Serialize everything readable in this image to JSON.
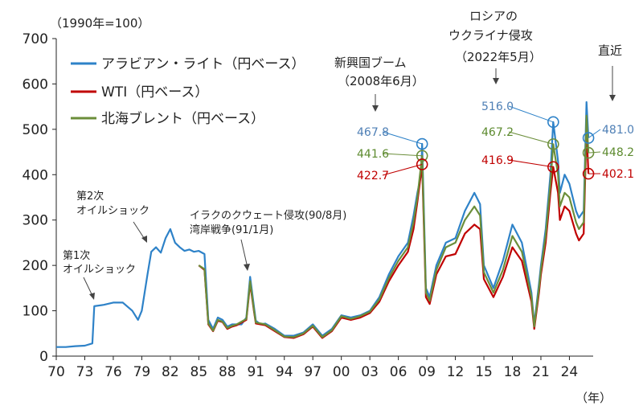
{
  "chart_data": {
    "type": "line",
    "unit_label": "（1990年=100）",
    "x_unit_label": "（年）",
    "ylim": [
      0,
      700
    ],
    "yticks": [
      0,
      100,
      200,
      300,
      400,
      500,
      600,
      700
    ],
    "xlim": [
      1970,
      2026.5
    ],
    "xticks": [
      {
        "year": 1970,
        "label": "70"
      },
      {
        "year": 1973,
        "label": "73"
      },
      {
        "year": 1976,
        "label": "76"
      },
      {
        "year": 1979,
        "label": "79"
      },
      {
        "year": 1982,
        "label": "82"
      },
      {
        "year": 1985,
        "label": "85"
      },
      {
        "year": 1988,
        "label": "88"
      },
      {
        "year": 1991,
        "label": "91"
      },
      {
        "year": 1994,
        "label": "94"
      },
      {
        "year": 1997,
        "label": "97"
      },
      {
        "year": 2000,
        "label": "00"
      },
      {
        "year": 2003,
        "label": "03"
      },
      {
        "year": 2006,
        "label": "06"
      },
      {
        "year": 2009,
        "label": "09"
      },
      {
        "year": 2012,
        "label": "12"
      },
      {
        "year": 2015,
        "label": "15"
      },
      {
        "year": 2018,
        "label": "18"
      },
      {
        "year": 2021,
        "label": "21"
      },
      {
        "year": 2024,
        "label": "24"
      }
    ],
    "grid": false,
    "legend_position": "top-left",
    "series": [
      {
        "name": "アラビアン・ライト（円ベース）",
        "color": "#2e82c8",
        "points": [
          [
            1970,
            20
          ],
          [
            1971,
            20
          ],
          [
            1972,
            22
          ],
          [
            1973,
            23
          ],
          [
            1973.8,
            28
          ],
          [
            1974,
            110
          ],
          [
            1975,
            113
          ],
          [
            1976,
            118
          ],
          [
            1977,
            118
          ],
          [
            1978,
            100
          ],
          [
            1978.6,
            80
          ],
          [
            1979,
            100
          ],
          [
            1979.6,
            180
          ],
          [
            1980,
            230
          ],
          [
            1980.5,
            240
          ],
          [
            1981,
            228
          ],
          [
            1981.5,
            260
          ],
          [
            1982,
            280
          ],
          [
            1982.5,
            250
          ],
          [
            1983,
            240
          ],
          [
            1983.5,
            232
          ],
          [
            1984,
            235
          ],
          [
            1984.5,
            230
          ],
          [
            1985,
            232
          ],
          [
            1985.6,
            225
          ],
          [
            1986,
            80
          ],
          [
            1986.5,
            60
          ],
          [
            1987,
            85
          ],
          [
            1987.5,
            80
          ],
          [
            1988,
            65
          ],
          [
            1988.5,
            70
          ],
          [
            1989,
            70
          ],
          [
            1989.5,
            70
          ],
          [
            1990,
            85
          ],
          [
            1990.4,
            175
          ],
          [
            1990.8,
            110
          ],
          [
            1991,
            78
          ],
          [
            1991.5,
            70
          ],
          [
            1992,
            72
          ],
          [
            1993,
            60
          ],
          [
            1994,
            45
          ],
          [
            1995,
            45
          ],
          [
            1996,
            52
          ],
          [
            1997,
            70
          ],
          [
            1998,
            45
          ],
          [
            1999,
            60
          ],
          [
            2000,
            90
          ],
          [
            2001,
            85
          ],
          [
            2002,
            90
          ],
          [
            2003,
            100
          ],
          [
            2004,
            130
          ],
          [
            2005,
            180
          ],
          [
            2006,
            220
          ],
          [
            2007,
            250
          ],
          [
            2007.6,
            310
          ],
          [
            2008,
            360
          ],
          [
            2008.4,
            400
          ],
          [
            2008.5,
            467.8
          ],
          [
            2008.9,
            150
          ],
          [
            2009.3,
            130
          ],
          [
            2010,
            200
          ],
          [
            2011,
            250
          ],
          [
            2012,
            260
          ],
          [
            2013,
            320
          ],
          [
            2014,
            360
          ],
          [
            2014.6,
            335
          ],
          [
            2015,
            200
          ],
          [
            2016,
            150
          ],
          [
            2017,
            210
          ],
          [
            2018,
            290
          ],
          [
            2019,
            250
          ],
          [
            2020,
            140
          ],
          [
            2020.3,
            70
          ],
          [
            2020.8,
            160
          ],
          [
            2021,
            200
          ],
          [
            2021.5,
            280
          ],
          [
            2022,
            400
          ],
          [
            2022.3,
            516
          ],
          [
            2022.8,
            430
          ],
          [
            2023,
            360
          ],
          [
            2023.5,
            400
          ],
          [
            2024,
            380
          ],
          [
            2024.7,
            320
          ],
          [
            2025,
            305
          ],
          [
            2025.5,
            320
          ],
          [
            2025.8,
            560
          ],
          [
            2026,
            481
          ]
        ]
      },
      {
        "name": "WTI（円ベース）",
        "color": "#c00000",
        "points": [
          [
            1985,
            200
          ],
          [
            1985.6,
            190
          ],
          [
            1986,
            70
          ],
          [
            1986.5,
            55
          ],
          [
            1987,
            78
          ],
          [
            1987.5,
            75
          ],
          [
            1988,
            60
          ],
          [
            1988.5,
            65
          ],
          [
            1989,
            68
          ],
          [
            1990,
            80
          ],
          [
            1990.4,
            160
          ],
          [
            1990.8,
            100
          ],
          [
            1991,
            72
          ],
          [
            1992,
            68
          ],
          [
            1993,
            55
          ],
          [
            1994,
            42
          ],
          [
            1995,
            40
          ],
          [
            1996,
            48
          ],
          [
            1997,
            65
          ],
          [
            1998,
            40
          ],
          [
            1999,
            55
          ],
          [
            2000,
            85
          ],
          [
            2001,
            80
          ],
          [
            2002,
            85
          ],
          [
            2003,
            95
          ],
          [
            2004,
            120
          ],
          [
            2005,
            165
          ],
          [
            2006,
            200
          ],
          [
            2007,
            230
          ],
          [
            2007.6,
            280
          ],
          [
            2008,
            340
          ],
          [
            2008.5,
            422.7
          ],
          [
            2008.9,
            130
          ],
          [
            2009.3,
            115
          ],
          [
            2010,
            180
          ],
          [
            2011,
            220
          ],
          [
            2012,
            225
          ],
          [
            2013,
            270
          ],
          [
            2014,
            290
          ],
          [
            2014.6,
            280
          ],
          [
            2015,
            170
          ],
          [
            2016,
            130
          ],
          [
            2017,
            175
          ],
          [
            2018,
            240
          ],
          [
            2019,
            210
          ],
          [
            2020,
            120
          ],
          [
            2020.3,
            60
          ],
          [
            2020.8,
            140
          ],
          [
            2021,
            180
          ],
          [
            2021.5,
            250
          ],
          [
            2022,
            360
          ],
          [
            2022.3,
            416.9
          ],
          [
            2022.8,
            360
          ],
          [
            2023,
            300
          ],
          [
            2023.5,
            330
          ],
          [
            2024,
            320
          ],
          [
            2024.7,
            270
          ],
          [
            2025,
            255
          ],
          [
            2025.5,
            270
          ],
          [
            2025.8,
            500
          ],
          [
            2026,
            402.1
          ]
        ]
      },
      {
        "name": "北海ブレント（円ベース）",
        "color": "#6b8e3a",
        "points": [
          [
            1985,
            200
          ],
          [
            1985.6,
            192
          ],
          [
            1986,
            72
          ],
          [
            1986.5,
            56
          ],
          [
            1987,
            80
          ],
          [
            1987.5,
            76
          ],
          [
            1988,
            62
          ],
          [
            1988.5,
            67
          ],
          [
            1989,
            70
          ],
          [
            1990,
            82
          ],
          [
            1990.4,
            165
          ],
          [
            1990.8,
            103
          ],
          [
            1991,
            74
          ],
          [
            1992,
            70
          ],
          [
            1993,
            57
          ],
          [
            1994,
            43
          ],
          [
            1995,
            42
          ],
          [
            1996,
            50
          ],
          [
            1997,
            67
          ],
          [
            1998,
            42
          ],
          [
            1999,
            57
          ],
          [
            2000,
            88
          ],
          [
            2001,
            82
          ],
          [
            2002,
            88
          ],
          [
            2003,
            98
          ],
          [
            2004,
            125
          ],
          [
            2005,
            172
          ],
          [
            2006,
            210
          ],
          [
            2007,
            240
          ],
          [
            2007.6,
            295
          ],
          [
            2008,
            350
          ],
          [
            2008.5,
            441.6
          ],
          [
            2008.9,
            140
          ],
          [
            2009.3,
            122
          ],
          [
            2010,
            190
          ],
          [
            2011,
            240
          ],
          [
            2012,
            250
          ],
          [
            2013,
            300
          ],
          [
            2014,
            330
          ],
          [
            2014.6,
            310
          ],
          [
            2015,
            185
          ],
          [
            2016,
            140
          ],
          [
            2017,
            190
          ],
          [
            2018,
            265
          ],
          [
            2019,
            230
          ],
          [
            2020,
            130
          ],
          [
            2020.3,
            65
          ],
          [
            2020.8,
            150
          ],
          [
            2021,
            190
          ],
          [
            2021.5,
            265
          ],
          [
            2022,
            380
          ],
          [
            2022.3,
            467.2
          ],
          [
            2022.8,
            400
          ],
          [
            2023,
            330
          ],
          [
            2023.5,
            360
          ],
          [
            2024,
            350
          ],
          [
            2024.7,
            295
          ],
          [
            2025,
            280
          ],
          [
            2025.5,
            295
          ],
          [
            2025.8,
            530
          ],
          [
            2026,
            448.2
          ]
        ]
      }
    ],
    "value_labels": [
      {
        "text": "467.8",
        "color": "#4e7fb5"
      },
      {
        "text": "441.6",
        "color": "#5c8a2e"
      },
      {
        "text": "422.7",
        "color": "#c00000"
      },
      {
        "text": "516.0",
        "color": "#4e7fb5"
      },
      {
        "text": "467.2",
        "color": "#5c8a2e"
      },
      {
        "text": "416.9",
        "color": "#c00000"
      },
      {
        "text": "481.0",
        "color": "#4e7fb5"
      },
      {
        "text": "448.2",
        "color": "#5c8a2e"
      },
      {
        "text": "402.1",
        "color": "#c00000"
      }
    ],
    "annotations": {
      "oil_shock_1": [
        "第1次",
        "オイルショック"
      ],
      "oil_shock_2": [
        "第2次",
        "オイルショック"
      ],
      "gulf": [
        "イラクのクウェート侵攻(90/8月)",
        "湾岸戦争(91/1月)"
      ],
      "emerging": [
        "新興国ブーム",
        "（2008年6月）"
      ],
      "russia": [
        "ロシアの",
        "ウクライナ侵攻",
        "（2022年5月）"
      ],
      "latest": [
        "直近"
      ]
    }
  }
}
